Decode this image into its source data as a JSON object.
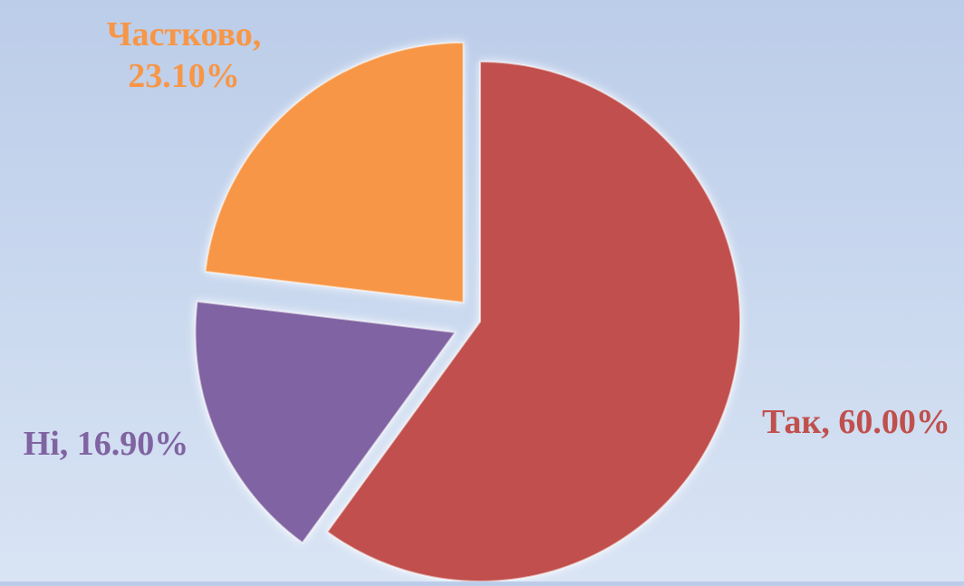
{
  "chart_data": {
    "type": "pie",
    "categories": [
      "Так",
      "Ні",
      "Частково"
    ],
    "values": [
      60.0,
      16.9,
      23.1
    ],
    "colors": [
      "#c0504d",
      "#8064a2",
      "#f79646"
    ],
    "data_labels": {
      "Так": [
        "Так, 60.00%"
      ],
      "Ні": [
        "Ні, 16.90%"
      ],
      "Частково": [
        "Частково,",
        "23.10%"
      ]
    },
    "exploded": true
  }
}
